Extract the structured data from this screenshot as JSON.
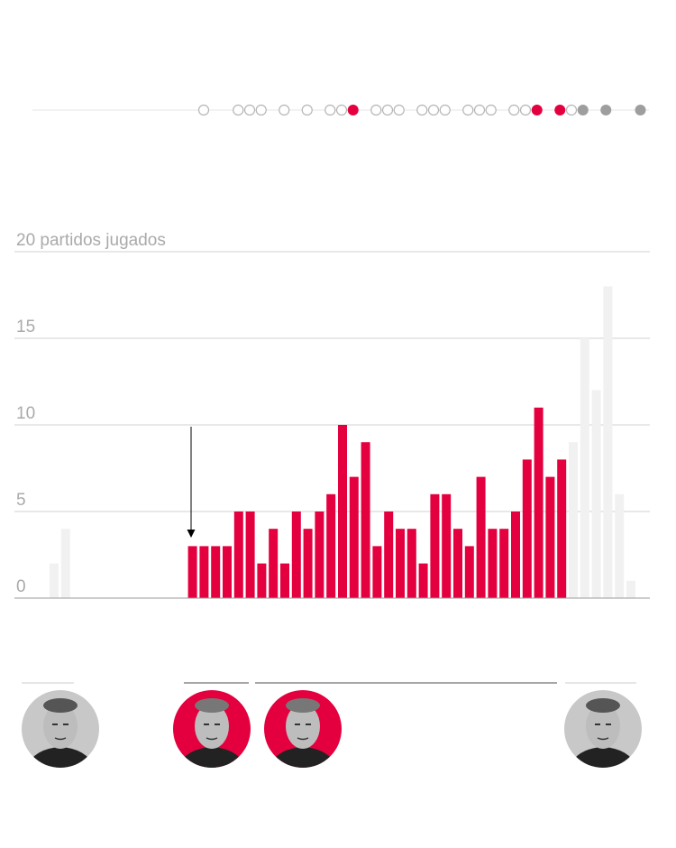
{
  "colors": {
    "accent": "#e4003f",
    "context": "#f1f1f1",
    "grid": "#d0d0d0",
    "dot_gray": "#9e9e9e",
    "dot_open": "#b5b5b5"
  },
  "timeline": {
    "dots": [
      "open",
      null,
      null,
      "open",
      "open",
      "open",
      null,
      "open",
      null,
      "open",
      null,
      "open",
      "open",
      "red",
      null,
      "open",
      "open",
      "open",
      null,
      "open",
      "open",
      "open",
      null,
      "open",
      "open",
      "open",
      null,
      "open",
      "open",
      "red",
      null,
      "red",
      "open",
      "gray",
      null,
      "gray",
      null,
      null,
      "gray"
    ]
  },
  "chart_data": {
    "type": "bar",
    "title": "",
    "ylabel": "partidos jugados",
    "ylim": [
      0,
      20
    ],
    "yticks": [
      {
        "value": 20,
        "label": "20 partidos jugados"
      },
      {
        "value": 15,
        "label": "15"
      },
      {
        "value": 10,
        "label": "10"
      },
      {
        "value": 5,
        "label": "5"
      },
      {
        "value": 0,
        "label": "0"
      }
    ],
    "grid": true,
    "series": [
      {
        "name": "context-before",
        "start": 0,
        "values": [
          2,
          4
        ]
      },
      {
        "name": "highlight",
        "start": 12,
        "values": [
          3,
          3,
          3,
          3,
          5,
          5,
          2,
          4,
          2,
          5,
          4,
          5,
          6,
          10,
          7,
          9,
          3,
          5,
          4,
          4,
          2,
          6,
          6,
          4,
          3,
          7,
          4,
          4,
          5,
          8,
          11,
          7,
          8
        ]
      },
      {
        "name": "context-after",
        "start": 45,
        "values": [
          9,
          15,
          12,
          18,
          6,
          1
        ]
      }
    ],
    "annotation": {
      "type": "arrow",
      "target_index": 12
    }
  },
  "coaches": [
    {
      "name": "coach-1",
      "style": "gray"
    },
    {
      "name": "coach-2",
      "style": "red"
    },
    {
      "name": "coach-3",
      "style": "red"
    },
    {
      "name": "coach-4",
      "style": "gray"
    }
  ]
}
